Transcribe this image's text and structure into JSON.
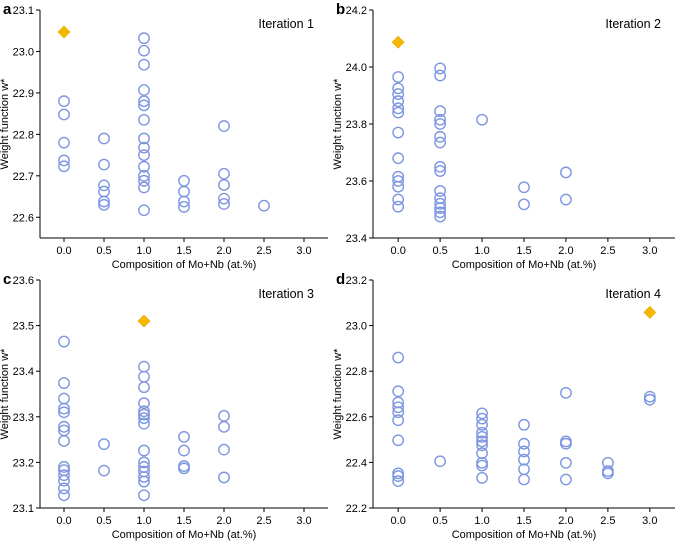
{
  "figure": {
    "panel_letters": [
      "a",
      "b",
      "c",
      "d"
    ]
  },
  "chart_data": [
    {
      "type": "scatter",
      "letter": "a",
      "title": "Iteration 1",
      "xlabel": "Composition of Mo+Nb (at.%)",
      "ylabel": "Weight function w*",
      "xlim": [
        -0.3,
        3.3
      ],
      "ylim": [
        22.55,
        23.1
      ],
      "x_ticks": [
        0.0,
        0.5,
        1.0,
        1.5,
        2.0,
        2.5,
        3.0
      ],
      "x_tick_labels": [
        "0.0",
        "0.5",
        "1.0",
        "1.5",
        "2.0",
        "2.5",
        "3.0"
      ],
      "y_ticks": [
        22.6,
        22.7,
        22.8,
        22.9,
        23.0,
        23.1
      ],
      "y_tick_labels": [
        "22.6",
        "22.7",
        "22.8",
        "22.9",
        "23.0",
        "23.1"
      ],
      "points": [
        [
          0.0,
          22.88
        ],
        [
          0.0,
          22.848
        ],
        [
          0.0,
          22.78
        ],
        [
          0.0,
          22.737
        ],
        [
          0.0,
          22.723
        ],
        [
          0.5,
          22.79
        ],
        [
          0.5,
          22.727
        ],
        [
          0.5,
          22.677
        ],
        [
          0.5,
          22.662
        ],
        [
          0.5,
          22.638
        ],
        [
          0.5,
          22.63
        ],
        [
          1.0,
          23.032
        ],
        [
          1.0,
          23.002
        ],
        [
          1.0,
          22.968
        ],
        [
          1.0,
          22.907
        ],
        [
          1.0,
          22.88
        ],
        [
          1.0,
          22.87
        ],
        [
          1.0,
          22.835
        ],
        [
          1.0,
          22.79
        ],
        [
          1.0,
          22.768
        ],
        [
          1.0,
          22.75
        ],
        [
          1.0,
          22.722
        ],
        [
          1.0,
          22.7
        ],
        [
          1.0,
          22.688
        ],
        [
          1.0,
          22.672
        ],
        [
          1.0,
          22.617
        ],
        [
          1.5,
          22.688
        ],
        [
          1.5,
          22.662
        ],
        [
          1.5,
          22.638
        ],
        [
          1.5,
          22.625
        ],
        [
          2.0,
          22.82
        ],
        [
          2.0,
          22.705
        ],
        [
          2.0,
          22.678
        ],
        [
          2.0,
          22.645
        ],
        [
          2.0,
          22.632
        ],
        [
          2.5,
          22.628
        ]
      ],
      "best": [
        0.0,
        23.047
      ]
    },
    {
      "type": "scatter",
      "letter": "b",
      "title": "Iteration 2",
      "xlabel": "Composition of Mo+Nb (at.%)",
      "ylabel": "Weight function w*",
      "xlim": [
        -0.3,
        3.3
      ],
      "ylim": [
        23.4,
        24.2
      ],
      "x_ticks": [
        0.0,
        0.5,
        1.0,
        1.5,
        2.0,
        2.5,
        3.0
      ],
      "x_tick_labels": [
        "0.0",
        "0.5",
        "1.0",
        "1.5",
        "2.0",
        "2.5",
        "3.0"
      ],
      "y_ticks": [
        23.4,
        23.6,
        23.8,
        24.0,
        24.2
      ],
      "y_tick_labels": [
        "23.4",
        "23.6",
        "23.8",
        "24.0",
        "24.2"
      ],
      "points": [
        [
          0.0,
          23.965
        ],
        [
          0.0,
          23.925
        ],
        [
          0.0,
          23.905
        ],
        [
          0.0,
          23.88
        ],
        [
          0.0,
          23.855
        ],
        [
          0.0,
          23.84
        ],
        [
          0.0,
          23.77
        ],
        [
          0.0,
          23.68
        ],
        [
          0.0,
          23.615
        ],
        [
          0.0,
          23.6
        ],
        [
          0.0,
          23.58
        ],
        [
          0.0,
          23.535
        ],
        [
          0.0,
          23.51
        ],
        [
          0.5,
          23.995
        ],
        [
          0.5,
          23.97
        ],
        [
          0.5,
          23.845
        ],
        [
          0.5,
          23.815
        ],
        [
          0.5,
          23.8
        ],
        [
          0.5,
          23.755
        ],
        [
          0.5,
          23.735
        ],
        [
          0.5,
          23.65
        ],
        [
          0.5,
          23.635
        ],
        [
          0.5,
          23.565
        ],
        [
          0.5,
          23.54
        ],
        [
          0.5,
          23.52
        ],
        [
          0.5,
          23.505
        ],
        [
          0.5,
          23.49
        ],
        [
          0.5,
          23.475
        ],
        [
          1.0,
          23.815
        ],
        [
          1.5,
          23.578
        ],
        [
          1.5,
          23.518
        ],
        [
          2.0,
          23.63
        ],
        [
          2.0,
          23.535
        ]
      ],
      "best": [
        0.0,
        24.087
      ]
    },
    {
      "type": "scatter",
      "letter": "c",
      "title": "Iteration 3",
      "xlabel": "Composition of Mo+Nb (at.%)",
      "ylabel": "Weight function w*",
      "xlim": [
        -0.3,
        3.3
      ],
      "ylim": [
        23.1,
        23.6
      ],
      "x_ticks": [
        0.0,
        0.5,
        1.0,
        1.5,
        2.0,
        2.5,
        3.0
      ],
      "x_tick_labels": [
        "0.0",
        "0.5",
        "1.0",
        "1.5",
        "2.0",
        "2.5",
        "3.0"
      ],
      "y_ticks": [
        23.1,
        23.2,
        23.3,
        23.4,
        23.5,
        23.6
      ],
      "y_tick_labels": [
        "23.1",
        "23.2",
        "23.3",
        "23.4",
        "23.5",
        "23.6"
      ],
      "points": [
        [
          0.0,
          23.465
        ],
        [
          0.0,
          23.374
        ],
        [
          0.0,
          23.34
        ],
        [
          0.0,
          23.318
        ],
        [
          0.0,
          23.31
        ],
        [
          0.0,
          23.278
        ],
        [
          0.0,
          23.27
        ],
        [
          0.0,
          23.247
        ],
        [
          0.0,
          23.19
        ],
        [
          0.0,
          23.183
        ],
        [
          0.0,
          23.172
        ],
        [
          0.0,
          23.16
        ],
        [
          0.0,
          23.143
        ],
        [
          0.0,
          23.128
        ],
        [
          0.5,
          23.24
        ],
        [
          0.5,
          23.182
        ],
        [
          1.0,
          23.41
        ],
        [
          1.0,
          23.388
        ],
        [
          1.0,
          23.365
        ],
        [
          1.0,
          23.33
        ],
        [
          1.0,
          23.312
        ],
        [
          1.0,
          23.305
        ],
        [
          1.0,
          23.297
        ],
        [
          1.0,
          23.285
        ],
        [
          1.0,
          23.226
        ],
        [
          1.0,
          23.2
        ],
        [
          1.0,
          23.19
        ],
        [
          1.0,
          23.18
        ],
        [
          1.0,
          23.168
        ],
        [
          1.0,
          23.158
        ],
        [
          1.0,
          23.128
        ],
        [
          1.5,
          23.256
        ],
        [
          1.5,
          23.226
        ],
        [
          1.5,
          23.192
        ],
        [
          1.5,
          23.187
        ],
        [
          2.0,
          23.302
        ],
        [
          2.0,
          23.278
        ],
        [
          2.0,
          23.228
        ],
        [
          2.0,
          23.167
        ]
      ],
      "best": [
        1.0,
        23.51
      ]
    },
    {
      "type": "scatter",
      "letter": "d",
      "title": "Iteration 4",
      "xlabel": "Composition of Mo+Nb (at.%)",
      "ylabel": "Weight function w*",
      "xlim": [
        -0.3,
        3.3
      ],
      "ylim": [
        22.2,
        23.2
      ],
      "x_ticks": [
        0.0,
        0.5,
        1.0,
        1.5,
        2.0,
        2.5,
        3.0
      ],
      "x_tick_labels": [
        "0.0",
        "0.5",
        "1.0",
        "1.5",
        "2.0",
        "2.5",
        "3.0"
      ],
      "y_ticks": [
        22.2,
        22.4,
        22.6,
        22.8,
        23.0,
        23.2
      ],
      "y_tick_labels": [
        "22.2",
        "22.4",
        "22.6",
        "22.8",
        "23.0",
        "23.2"
      ],
      "points": [
        [
          0.0,
          22.86
        ],
        [
          0.0,
          22.712
        ],
        [
          0.0,
          22.663
        ],
        [
          0.0,
          22.642
        ],
        [
          0.0,
          22.62
        ],
        [
          0.0,
          22.585
        ],
        [
          0.0,
          22.497
        ],
        [
          0.0,
          22.352
        ],
        [
          0.0,
          22.34
        ],
        [
          0.0,
          22.318
        ],
        [
          0.5,
          22.405
        ],
        [
          1.0,
          22.615
        ],
        [
          1.0,
          22.592
        ],
        [
          1.0,
          22.565
        ],
        [
          1.0,
          22.53
        ],
        [
          1.0,
          22.512
        ],
        [
          1.0,
          22.492
        ],
        [
          1.0,
          22.475
        ],
        [
          1.0,
          22.44
        ],
        [
          1.0,
          22.398
        ],
        [
          1.0,
          22.386
        ],
        [
          1.0,
          22.332
        ],
        [
          1.5,
          22.565
        ],
        [
          1.5,
          22.482
        ],
        [
          1.5,
          22.448
        ],
        [
          1.5,
          22.412
        ],
        [
          1.5,
          22.37
        ],
        [
          1.5,
          22.325
        ],
        [
          2.0,
          22.705
        ],
        [
          2.0,
          22.492
        ],
        [
          2.0,
          22.482
        ],
        [
          2.0,
          22.398
        ],
        [
          2.0,
          22.325
        ],
        [
          2.5,
          22.398
        ],
        [
          2.5,
          22.362
        ],
        [
          2.5,
          22.352
        ],
        [
          3.0,
          22.688
        ],
        [
          3.0,
          22.675
        ]
      ],
      "best": [
        3.0,
        23.058
      ]
    }
  ]
}
